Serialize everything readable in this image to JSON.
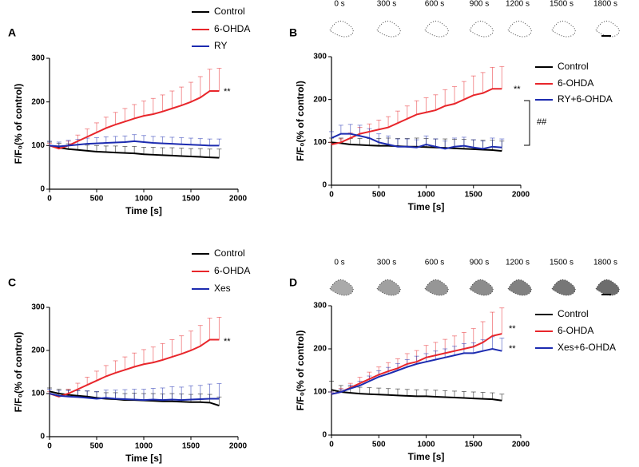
{
  "chart_data": [
    {
      "type": "line",
      "panel": "A",
      "xlabel": "Time [s]",
      "ylabel": "F/F₀(% of control)",
      "x": [
        0,
        100,
        200,
        300,
        400,
        500,
        600,
        700,
        800,
        900,
        1000,
        1100,
        1200,
        1300,
        1400,
        1500,
        1600,
        1700,
        1800
      ],
      "xlim": [
        0,
        2000
      ],
      "ylim": [
        0,
        300
      ],
      "xticks": [
        0,
        500,
        1000,
        1500,
        2000
      ],
      "yticks": [
        0,
        100,
        200,
        300
      ],
      "series": [
        {
          "name": "Control",
          "color": "#000000",
          "values": [
            100,
            95,
            92,
            90,
            88,
            86,
            85,
            84,
            83,
            82,
            80,
            79,
            78,
            77,
            76,
            75,
            74,
            73,
            72
          ],
          "errors": [
            8,
            10,
            12,
            12,
            13,
            14,
            14,
            15,
            15,
            16,
            16,
            17,
            17,
            18,
            18,
            18,
            19,
            19,
            20
          ]
        },
        {
          "name": "6-OHDA",
          "color": "#e8262b",
          "values": [
            100,
            93,
            100,
            110,
            120,
            130,
            140,
            148,
            155,
            162,
            168,
            172,
            178,
            185,
            192,
            200,
            210,
            225,
            225
          ],
          "errors": [
            5,
            6,
            10,
            14,
            18,
            22,
            25,
            28,
            30,
            32,
            34,
            36,
            38,
            40,
            42,
            45,
            48,
            50,
            52
          ]
        },
        {
          "name": "RY",
          "color": "#1c2bb0",
          "values": [
            100,
            98,
            100,
            102,
            104,
            105,
            106,
            107,
            108,
            110,
            108,
            106,
            105,
            104,
            103,
            102,
            101,
            100,
            100
          ],
          "errors": [
            10,
            10,
            12,
            12,
            13,
            13,
            14,
            14,
            14,
            15,
            15,
            15,
            15,
            15,
            15,
            15,
            15,
            15,
            15
          ]
        }
      ],
      "annotations": [
        "**"
      ]
    },
    {
      "type": "line",
      "panel": "B",
      "xlabel": "Time [s]",
      "ylabel": "F/F₀(% of control)",
      "x": [
        0,
        100,
        200,
        300,
        400,
        500,
        600,
        700,
        800,
        900,
        1000,
        1100,
        1200,
        1300,
        1400,
        1500,
        1600,
        1700,
        1800
      ],
      "xlim": [
        0,
        2000
      ],
      "ylim": [
        0,
        300
      ],
      "xticks": [
        0,
        500,
        1000,
        1500,
        2000
      ],
      "yticks": [
        0,
        100,
        200,
        300
      ],
      "series": [
        {
          "name": "Control",
          "color": "#000000",
          "values": [
            100,
            98,
            95,
            94,
            93,
            92,
            92,
            91,
            90,
            90,
            89,
            88,
            87,
            86,
            85,
            84,
            83,
            82,
            80
          ],
          "errors": [
            10,
            12,
            14,
            15,
            16,
            17,
            18,
            18,
            19,
            20,
            20,
            20,
            21,
            21,
            22,
            22,
            22,
            23,
            23
          ]
        },
        {
          "name": "6-OHDA",
          "color": "#e8262b",
          "values": [
            95,
            100,
            110,
            120,
            125,
            130,
            135,
            145,
            155,
            165,
            170,
            175,
            185,
            190,
            200,
            210,
            215,
            225,
            225
          ],
          "errors": [
            5,
            8,
            12,
            15,
            18,
            22,
            25,
            28,
            30,
            32,
            34,
            36,
            38,
            40,
            42,
            45,
            48,
            50,
            52
          ]
        },
        {
          "name": "RY+6-OHDA",
          "color": "#1c2bb0",
          "values": [
            110,
            120,
            120,
            115,
            110,
            100,
            95,
            90,
            90,
            88,
            95,
            90,
            85,
            90,
            92,
            88,
            85,
            90,
            88
          ],
          "errors": [
            15,
            20,
            22,
            25,
            22,
            20,
            20,
            18,
            18,
            18,
            20,
            18,
            18,
            20,
            20,
            18,
            18,
            20,
            20
          ]
        }
      ],
      "annotations": [
        "**",
        "##"
      ],
      "image_labels": [
        "0 s",
        "300 s",
        "600 s",
        "900 s",
        "1200 s",
        "1500 s",
        "1800 s"
      ]
    },
    {
      "type": "line",
      "panel": "C",
      "xlabel": "Time [s]",
      "ylabel": "F/F₀(% of control)",
      "x": [
        0,
        100,
        200,
        300,
        400,
        500,
        600,
        700,
        800,
        900,
        1000,
        1100,
        1200,
        1300,
        1400,
        1500,
        1600,
        1700,
        1800
      ],
      "xlim": [
        0,
        2000
      ],
      "ylim": [
        0,
        300
      ],
      "xticks": [
        0,
        500,
        1000,
        1500,
        2000
      ],
      "yticks": [
        0,
        100,
        200,
        300
      ],
      "series": [
        {
          "name": "Control",
          "color": "#000000",
          "values": [
            105,
            100,
            97,
            95,
            93,
            90,
            88,
            87,
            85,
            85,
            84,
            83,
            82,
            82,
            81,
            80,
            80,
            79,
            72
          ],
          "errors": [
            8,
            10,
            12,
            12,
            13,
            14,
            14,
            15,
            15,
            16,
            16,
            17,
            17,
            18,
            18,
            18,
            19,
            19,
            20
          ]
        },
        {
          "name": "6-OHDA",
          "color": "#e8262b",
          "values": [
            100,
            93,
            100,
            110,
            120,
            130,
            140,
            148,
            155,
            162,
            168,
            172,
            178,
            185,
            192,
            200,
            210,
            225,
            225
          ],
          "errors": [
            5,
            6,
            10,
            14,
            18,
            22,
            25,
            28,
            30,
            32,
            34,
            36,
            38,
            40,
            42,
            45,
            48,
            50,
            52
          ]
        },
        {
          "name": "Xes",
          "color": "#1c2bb0",
          "values": [
            100,
            95,
            93,
            92,
            90,
            88,
            90,
            88,
            87,
            86,
            85,
            86,
            85,
            86,
            85,
            86,
            87,
            88,
            88
          ],
          "errors": [
            10,
            12,
            14,
            15,
            16,
            17,
            18,
            20,
            22,
            24,
            25,
            26,
            28,
            30,
            30,
            32,
            32,
            34,
            35
          ]
        }
      ],
      "annotations": [
        "**"
      ]
    },
    {
      "type": "line",
      "panel": "D",
      "xlabel": "Time [s]",
      "ylabel": "F/F₀(% of control)",
      "x": [
        0,
        100,
        200,
        300,
        400,
        500,
        600,
        700,
        800,
        900,
        1000,
        1100,
        1200,
        1300,
        1400,
        1500,
        1600,
        1700,
        1800
      ],
      "xlim": [
        0,
        2000
      ],
      "ylim": [
        0,
        300
      ],
      "xticks": [
        0,
        500,
        1000,
        1500,
        2000
      ],
      "yticks": [
        0,
        100,
        200,
        300
      ],
      "series": [
        {
          "name": "Control",
          "color": "#000000",
          "values": [
            105,
            100,
            98,
            96,
            95,
            94,
            93,
            92,
            91,
            90,
            90,
            89,
            88,
            87,
            86,
            85,
            84,
            83,
            80
          ],
          "errors": [
            20,
            15,
            15,
            15,
            15,
            15,
            15,
            15,
            15,
            15,
            15,
            15,
            15,
            15,
            15,
            15,
            15,
            15,
            15
          ]
        },
        {
          "name": "6-OHDA",
          "color": "#e8262b",
          "values": [
            95,
            100,
            110,
            120,
            130,
            140,
            148,
            155,
            165,
            170,
            180,
            185,
            190,
            195,
            200,
            205,
            215,
            230,
            235
          ],
          "errors": [
            5,
            8,
            10,
            14,
            16,
            18,
            20,
            22,
            24,
            26,
            28,
            30,
            32,
            35,
            38,
            42,
            48,
            55,
            60
          ]
        },
        {
          "name": "Xes+6-OHDA",
          "color": "#1c2bb0",
          "values": [
            95,
            100,
            108,
            115,
            125,
            135,
            142,
            150,
            158,
            165,
            170,
            175,
            180,
            185,
            190,
            190,
            195,
            200,
            195
          ],
          "errors": [
            5,
            6,
            8,
            10,
            12,
            14,
            15,
            16,
            17,
            18,
            19,
            20,
            20,
            21,
            22,
            24,
            26,
            28,
            30
          ]
        }
      ],
      "annotations": [
        "**",
        "**"
      ],
      "image_labels": [
        "0 s",
        "300 s",
        "600 s",
        "900 s",
        "1200 s",
        "1500 s",
        "1800 s"
      ]
    }
  ]
}
